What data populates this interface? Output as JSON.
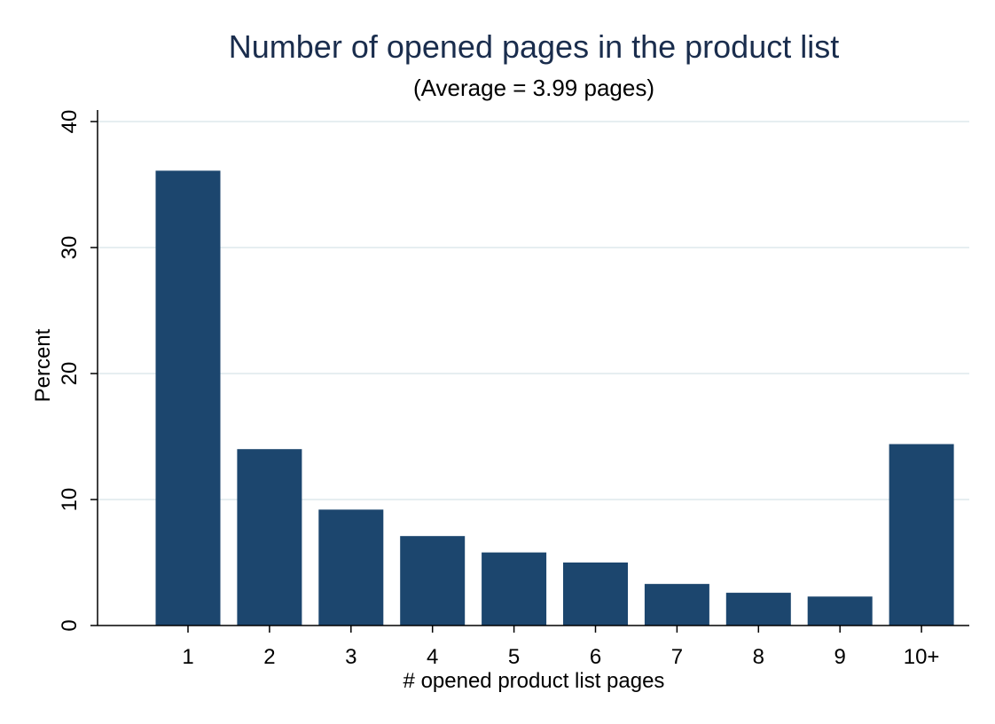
{
  "chart_data": {
    "type": "bar",
    "title": "Number of opened pages in the product list",
    "subtitle": "(Average = 3.99 pages)",
    "xlabel": "# opened product list pages",
    "ylabel": "Percent",
    "categories": [
      "1",
      "2",
      "3",
      "4",
      "5",
      "6",
      "7",
      "8",
      "9",
      "10+"
    ],
    "values": [
      36.1,
      14.0,
      9.2,
      7.1,
      5.8,
      5.0,
      3.3,
      2.6,
      2.3,
      14.4
    ],
    "ylim": [
      0,
      40
    ],
    "yticks": [
      0,
      10,
      20,
      30,
      40
    ],
    "grid": true,
    "colors": {
      "bar": "#1c466e",
      "grid": "#e6eef1",
      "axis": "#000000",
      "title": "#1a2d4d"
    }
  }
}
